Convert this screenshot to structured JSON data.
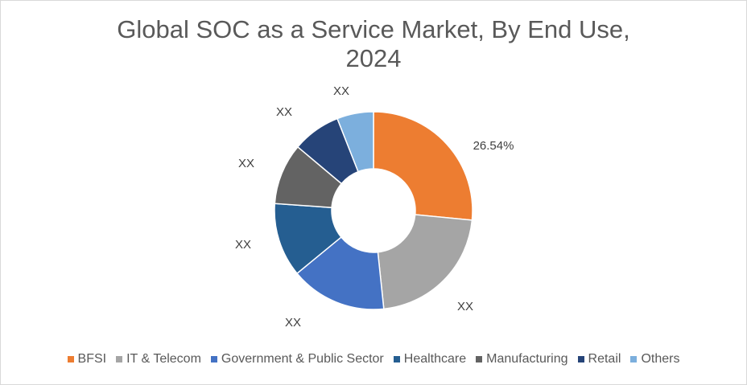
{
  "chart_data": {
    "type": "pie",
    "variant": "donut",
    "title": "Global SOC as a Service Market, By End Use, 2024",
    "title_lines": [
      "Global SOC as a Service Market, By End Use,",
      "2024"
    ],
    "categories": [
      "BFSI",
      "IT & Telecom",
      "Government & Public Sector",
      "Healthcare",
      "Manufacturing",
      "Retail",
      "Others"
    ],
    "values": [
      26.54,
      21.8,
      15.7,
      12.1,
      10.0,
      7.9,
      5.96
    ],
    "data_labels": [
      "26.54%",
      "XX",
      "XX",
      "XX",
      "XX",
      "XX",
      "XX"
    ],
    "colors": [
      "#ED7D31",
      "#A5A5A5",
      "#4472C4",
      "#255E91",
      "#636363",
      "#264478",
      "#7CAFDD"
    ],
    "legend_position": "bottom"
  }
}
